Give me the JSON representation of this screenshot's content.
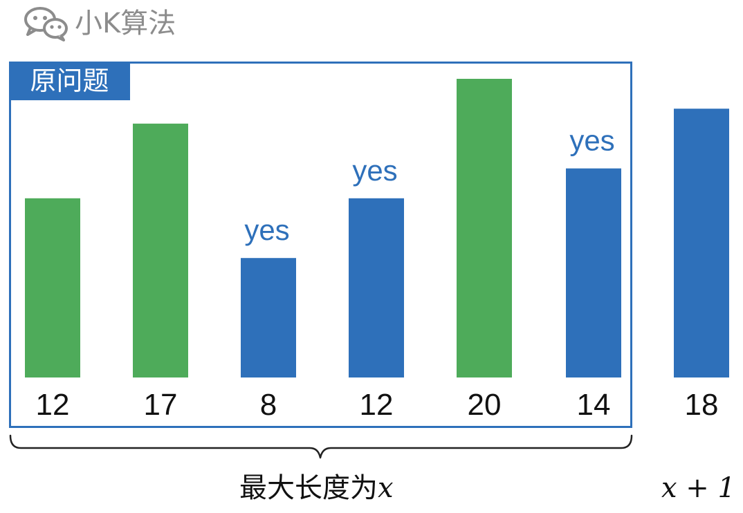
{
  "watermark": {
    "icon": "wechat-icon",
    "text": "小K算法"
  },
  "problem_tag": "原问题",
  "colors": {
    "green": "#4eab5a",
    "blue": "#2e70ba",
    "frame": "#2e70ba",
    "brace": "#222222"
  },
  "bars": [
    {
      "label": "12",
      "value": 12,
      "color": "green",
      "note": ""
    },
    {
      "label": "17",
      "value": 17,
      "color": "green",
      "note": ""
    },
    {
      "label": "8",
      "value": 8,
      "color": "blue",
      "note": "yes"
    },
    {
      "label": "12",
      "value": 12,
      "color": "blue",
      "note": "yes"
    },
    {
      "label": "20",
      "value": 20,
      "color": "green",
      "note": ""
    },
    {
      "label": "14",
      "value": 14,
      "color": "blue",
      "note": "yes"
    },
    {
      "label": "18",
      "value": 18,
      "color": "blue",
      "note": ""
    }
  ],
  "range_label": {
    "text": "最大长度为",
    "math": "x"
  },
  "next_label": {
    "math": "x + 1"
  }
}
